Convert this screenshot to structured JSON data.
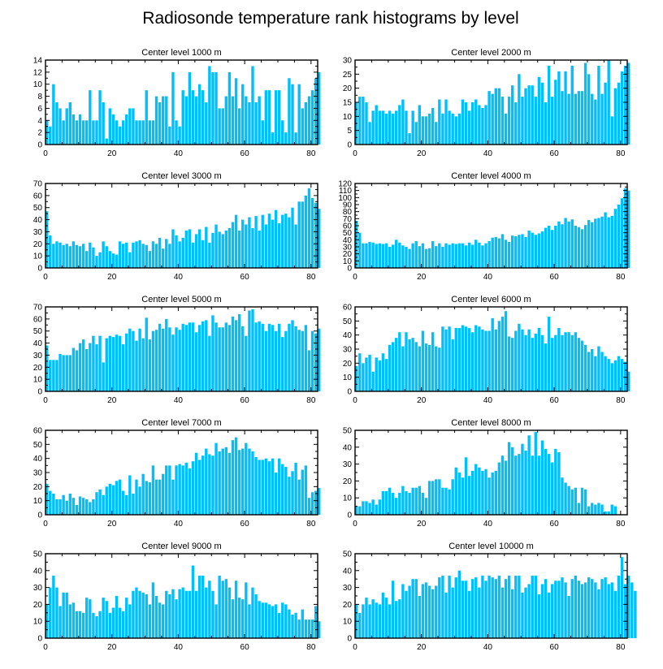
{
  "title": "Radiosonde temperature rank histograms by level",
  "bar_color": "#00bfff",
  "chart_data": [
    {
      "type": "bar",
      "title": "Center level 1000 m",
      "xlim": [
        0,
        82
      ],
      "ylim": [
        0,
        14
      ],
      "yticks": [
        0,
        2,
        4,
        6,
        8,
        10,
        12,
        14
      ],
      "xticks": [
        0,
        20,
        40,
        60,
        80
      ],
      "values": [
        4,
        3,
        10,
        7,
        6,
        4,
        6,
        7,
        5,
        4,
        5,
        4,
        4,
        9,
        4,
        4,
        9,
        7,
        1,
        6,
        5,
        4,
        3,
        4,
        5,
        6,
        6,
        4,
        4,
        4,
        9,
        4,
        4,
        8,
        7,
        8,
        8,
        3,
        12,
        4,
        3,
        9,
        8,
        12,
        9,
        8,
        10,
        9,
        7,
        13,
        12,
        12,
        6,
        6,
        8,
        12,
        8,
        11,
        6,
        10,
        8,
        7,
        13,
        7,
        8,
        4,
        9,
        9,
        2,
        9,
        9,
        4,
        2,
        11,
        10,
        2,
        10,
        6,
        7,
        8,
        9,
        11,
        12
      ]
    },
    {
      "type": "bar",
      "title": "Center level 2000 m",
      "xlim": [
        0,
        82
      ],
      "ylim": [
        0,
        30
      ],
      "yticks": [
        0,
        5,
        10,
        15,
        20,
        25,
        30
      ],
      "xticks": [
        0,
        20,
        40,
        60,
        80
      ],
      "values": [
        15,
        17,
        17,
        15,
        8,
        12,
        14,
        12,
        12,
        11,
        12,
        11,
        12,
        14,
        16,
        12,
        4,
        12,
        8,
        14,
        10,
        10,
        11,
        13,
        8,
        16,
        11,
        16,
        12,
        11,
        10,
        11,
        16,
        15,
        12,
        15,
        16,
        14,
        13,
        14,
        19,
        18,
        20,
        20,
        17,
        11,
        17,
        21,
        15,
        25,
        17,
        20,
        21,
        21,
        17,
        24,
        22,
        15,
        28,
        17,
        23,
        26,
        19,
        26,
        18,
        28,
        18,
        19,
        19,
        29,
        25,
        18,
        16,
        28,
        18,
        22,
        30,
        10,
        20,
        22,
        26,
        28,
        29
      ]
    },
    {
      "type": "bar",
      "title": "Center level 3000 m",
      "xlim": [
        0,
        82
      ],
      "ylim": [
        0,
        70
      ],
      "yticks": [
        0,
        10,
        20,
        30,
        40,
        50,
        60,
        70
      ],
      "xticks": [
        0,
        20,
        40,
        60,
        80
      ],
      "values": [
        47,
        27,
        20,
        22,
        21,
        19,
        20,
        18,
        22,
        19,
        18,
        20,
        14,
        21,
        17,
        10,
        13,
        22,
        18,
        14,
        12,
        11,
        22,
        20,
        21,
        13,
        21,
        22,
        23,
        20,
        19,
        14,
        22,
        20,
        25,
        16,
        24,
        20,
        32,
        27,
        22,
        25,
        31,
        32,
        21,
        28,
        32,
        23,
        34,
        21,
        29,
        36,
        30,
        28,
        31,
        33,
        38,
        44,
        31,
        40,
        36,
        42,
        33,
        43,
        31,
        44,
        36,
        45,
        40,
        48,
        37,
        44,
        45,
        42,
        50,
        36,
        55,
        55,
        60,
        66,
        58,
        54,
        49
      ]
    },
    {
      "type": "bar",
      "title": "Center level 4000 m",
      "xlim": [
        0,
        82
      ],
      "ylim": [
        0,
        120
      ],
      "yticks": [
        0,
        10,
        20,
        30,
        40,
        50,
        60,
        70,
        80,
        90,
        100,
        110,
        120
      ],
      "xticks": [
        0,
        20,
        40,
        60,
        80
      ],
      "values": [
        67,
        50,
        35,
        35,
        37,
        36,
        34,
        35,
        34,
        35,
        30,
        33,
        40,
        36,
        32,
        30,
        27,
        35,
        38,
        31,
        35,
        27,
        28,
        38,
        31,
        35,
        30,
        35,
        33,
        35,
        34,
        35,
        35,
        32,
        36,
        33,
        40,
        36,
        32,
        35,
        38,
        43,
        44,
        42,
        48,
        40,
        37,
        46,
        45,
        47,
        48,
        44,
        53,
        50,
        47,
        49,
        52,
        57,
        60,
        54,
        60,
        66,
        62,
        71,
        66,
        69,
        60,
        58,
        55,
        61,
        68,
        65,
        70,
        71,
        73,
        79,
        72,
        74,
        84,
        90,
        99,
        113,
        110
      ]
    },
    {
      "type": "bar",
      "title": "Center level 5000 m",
      "xlim": [
        0,
        82
      ],
      "ylim": [
        0,
        70
      ],
      "yticks": [
        0,
        10,
        20,
        30,
        40,
        50,
        60,
        70
      ],
      "xticks": [
        0,
        20,
        40,
        60,
        80
      ],
      "values": [
        38,
        26,
        26,
        26,
        31,
        30,
        30,
        30,
        36,
        34,
        40,
        43,
        35,
        40,
        46,
        39,
        46,
        24,
        44,
        46,
        45,
        47,
        46,
        39,
        48,
        52,
        50,
        42,
        52,
        44,
        61,
        43,
        50,
        51,
        56,
        52,
        60,
        53,
        47,
        53,
        51,
        56,
        55,
        57,
        57,
        49,
        55,
        58,
        59,
        46,
        63,
        57,
        53,
        53,
        57,
        55,
        62,
        59,
        64,
        54,
        46,
        67,
        68,
        57,
        58,
        56,
        50,
        56,
        55,
        50,
        56,
        45,
        50,
        56,
        59,
        54,
        51,
        50,
        55,
        34,
        50,
        48,
        52
      ]
    },
    {
      "type": "bar",
      "title": "Center level 6000 m",
      "xlim": [
        0,
        82
      ],
      "ylim": [
        0,
        60
      ],
      "yticks": [
        0,
        10,
        20,
        30,
        40,
        50,
        60
      ],
      "xticks": [
        0,
        20,
        40,
        60,
        80
      ],
      "values": [
        18,
        27,
        20,
        24,
        26,
        14,
        24,
        22,
        27,
        23,
        33,
        35,
        38,
        42,
        32,
        42,
        37,
        38,
        35,
        32,
        43,
        34,
        33,
        42,
        32,
        31,
        46,
        44,
        46,
        37,
        45,
        45,
        47,
        46,
        45,
        42,
        47,
        46,
        44,
        43,
        43,
        52,
        44,
        50,
        53,
        57,
        39,
        38,
        43,
        48,
        44,
        40,
        44,
        38,
        41,
        45,
        40,
        34,
        53,
        38,
        40,
        45,
        40,
        42,
        42,
        40,
        42,
        38,
        36,
        33,
        28,
        30,
        25,
        32,
        28,
        25,
        23,
        20,
        22,
        25,
        23,
        21,
        14
      ]
    },
    {
      "type": "bar",
      "title": "Center level 7000 m",
      "xlim": [
        0,
        82
      ],
      "ylim": [
        0,
        60
      ],
      "yticks": [
        0,
        10,
        20,
        30,
        40,
        50,
        60
      ],
      "xticks": [
        0,
        20,
        40,
        60,
        80
      ],
      "values": [
        22,
        17,
        15,
        11,
        11,
        14,
        10,
        15,
        12,
        7,
        13,
        12,
        11,
        9,
        11,
        16,
        18,
        14,
        20,
        22,
        21,
        24,
        25,
        17,
        14,
        28,
        15,
        25,
        20,
        29,
        24,
        23,
        35,
        25,
        25,
        29,
        35,
        35,
        25,
        35,
        36,
        35,
        37,
        33,
        38,
        44,
        39,
        42,
        47,
        43,
        42,
        51,
        45,
        47,
        48,
        44,
        53,
        55,
        46,
        47,
        51,
        47,
        45,
        41,
        39,
        39,
        40,
        38,
        40,
        30,
        40,
        36,
        34,
        27,
        31,
        37,
        25,
        32,
        35,
        12,
        16,
        17,
        19
      ]
    },
    {
      "type": "bar",
      "title": "Center level 8000 m",
      "xlim": [
        0,
        82
      ],
      "ylim": [
        0,
        50
      ],
      "yticks": [
        0,
        10,
        20,
        30,
        40,
        50
      ],
      "xticks": [
        0,
        20,
        40,
        60,
        80
      ],
      "values": [
        5,
        5,
        8,
        8,
        7,
        9,
        6,
        9,
        14,
        14,
        16,
        13,
        10,
        13,
        17,
        14,
        13,
        16,
        16,
        17,
        13,
        10,
        20,
        20,
        21,
        21,
        16,
        16,
        15,
        21,
        28,
        25,
        22,
        34,
        23,
        26,
        30,
        28,
        26,
        27,
        22,
        25,
        26,
        31,
        35,
        32,
        43,
        40,
        35,
        36,
        42,
        38,
        47,
        35,
        49,
        35,
        44,
        39,
        36,
        31,
        39,
        37,
        22,
        19,
        17,
        15,
        16,
        7,
        16,
        15,
        5,
        7,
        6,
        7,
        6,
        2,
        2,
        6,
        5
      ]
    },
    {
      "type": "bar",
      "title": "Center level 9000 m",
      "xlim": [
        0,
        82
      ],
      "ylim": [
        0,
        50
      ],
      "yticks": [
        0,
        10,
        20,
        30,
        40,
        50
      ],
      "xticks": [
        0,
        20,
        40,
        60,
        80
      ],
      "values": [
        20,
        30,
        37,
        30,
        19,
        27,
        27,
        20,
        21,
        16,
        16,
        15,
        24,
        23,
        15,
        13,
        16,
        24,
        22,
        15,
        18,
        25,
        18,
        16,
        24,
        20,
        28,
        30,
        28,
        27,
        26,
        20,
        33,
        25,
        21,
        20,
        28,
        26,
        29,
        23,
        29,
        30,
        28,
        28,
        43,
        28,
        37,
        37,
        30,
        34,
        28,
        20,
        37,
        34,
        35,
        30,
        23,
        34,
        24,
        23,
        33,
        20,
        30,
        26,
        22,
        21,
        21,
        20,
        19,
        20,
        15,
        21,
        20,
        17,
        14,
        15,
        11,
        17,
        11,
        11,
        11,
        19,
        10
      ]
    },
    {
      "type": "bar",
      "title": "Center level 10000 m",
      "xlim": [
        0,
        82
      ],
      "ylim": [
        0,
        50
      ],
      "yticks": [
        0,
        10,
        20,
        30,
        40,
        50
      ],
      "xticks": [
        0,
        20,
        40,
        60,
        80
      ],
      "values": [
        20,
        15,
        20,
        24,
        20,
        23,
        21,
        20,
        27,
        24,
        20,
        34,
        22,
        23,
        32,
        28,
        31,
        35,
        35,
        25,
        32,
        33,
        31,
        29,
        31,
        36,
        37,
        27,
        37,
        30,
        36,
        40,
        34,
        34,
        28,
        35,
        36,
        30,
        37,
        34,
        37,
        36,
        35,
        37,
        30,
        35,
        37,
        29,
        37,
        37,
        27,
        30,
        32,
        37,
        37,
        26,
        32,
        35,
        27,
        32,
        34,
        34,
        36,
        33,
        25,
        35,
        37,
        34,
        32,
        33,
        36,
        35,
        33,
        29,
        35,
        36,
        32,
        33,
        28,
        37,
        48,
        32,
        37,
        33,
        28
      ]
    }
  ]
}
